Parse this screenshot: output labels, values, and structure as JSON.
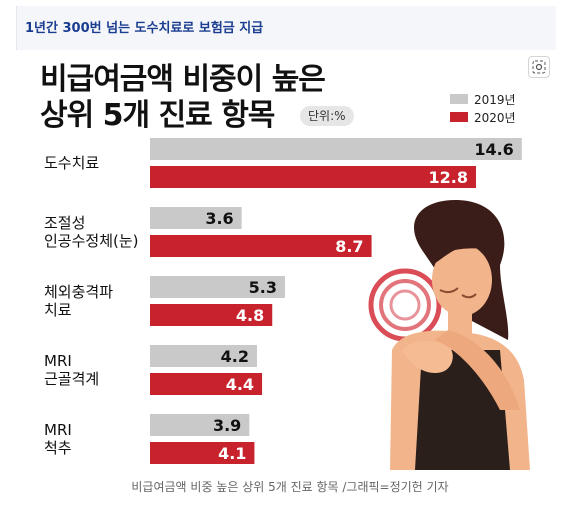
{
  "header": {
    "caption": "1년간 300번 넘는 도수치료로 보험금 지급"
  },
  "figure": {
    "title_line1": "비급여금액 비중이 높은",
    "title_line2": "상위 5개 진료 항목",
    "unit": "단위:%",
    "footer": "비급여금액 비중 높은 상위 5개 진료 항목 /그래픽=정기헌 기자",
    "zoom_icon": "lens-icon"
  },
  "colors": {
    "y2019": "#c9c9c9",
    "y2020": "#c8232c"
  },
  "chart_data": {
    "type": "bar",
    "orientation": "horizontal",
    "categories": [
      [
        "도수치료"
      ],
      [
        "조절성",
        "인공수정체(눈)"
      ],
      [
        "체외충격파",
        "치료"
      ],
      [
        "MRI",
        "근골격계"
      ],
      [
        "MRI",
        "척추"
      ]
    ],
    "series": [
      {
        "name": "2019년",
        "values": [
          14.6,
          3.6,
          5.3,
          4.2,
          3.9
        ]
      },
      {
        "name": "2020년",
        "values": [
          12.8,
          8.7,
          4.8,
          4.4,
          4.1
        ]
      }
    ],
    "xlim": [
      0,
      15
    ],
    "value_labels": true,
    "grid": false,
    "legend": "top-right"
  }
}
